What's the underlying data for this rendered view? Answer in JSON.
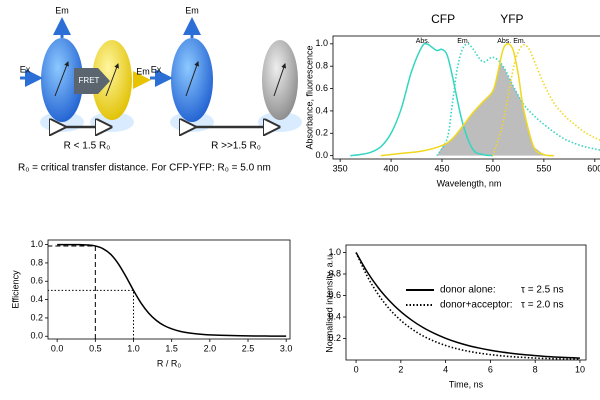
{
  "diagram": {
    "labels": {
      "em_left": "Em",
      "ex_left": "Ex",
      "fret": "FRET",
      "em_acceptor": "Em",
      "em_right": "Em",
      "ex_right": "Ex",
      "near": "R < 1.5 R₀",
      "far": "R >>1.5 R₀",
      "caption": "R₀ = critical transfer distance. For CFP-YFP: R₀ = 5.0 nm"
    }
  },
  "chart_data": [
    {
      "type": "line",
      "y_label": "Absorbance, fluorescence",
      "x_label": "Wavelength, nm",
      "xlim": [
        343,
        610
      ],
      "ylim": [
        -0.03,
        1.07
      ],
      "xticks": [
        350,
        400,
        450,
        500,
        550,
        600
      ],
      "yticks": [
        {
          "value": 0,
          "label": "0.0"
        },
        0.2,
        0.4,
        0.6,
        0.8,
        {
          "value": 1,
          "label": "1.0"
        }
      ],
      "overlap_fill": "#bdbdbd",
      "series": [
        {
          "group": "CFP",
          "name": "Abs.",
          "color": "#33d6c0",
          "style": "solid",
          "x": [
            360,
            370,
            380,
            390,
            400,
            410,
            420,
            430,
            435,
            440,
            445,
            450,
            455,
            460,
            470,
            480,
            490,
            500
          ],
          "values": [
            0.0,
            0.01,
            0.03,
            0.08,
            0.2,
            0.42,
            0.75,
            0.97,
            1.0,
            0.97,
            0.94,
            0.95,
            0.9,
            0.72,
            0.3,
            0.06,
            0.01,
            0.0
          ]
        },
        {
          "group": "CFP",
          "name": "Em.",
          "color": "#33d6c0",
          "style": "dotted",
          "shade": true,
          "x": [
            445,
            455,
            460,
            465,
            470,
            475,
            480,
            490,
            500,
            510,
            520,
            530,
            540,
            550,
            560,
            570,
            580,
            590,
            600,
            610
          ],
          "values": [
            0.0,
            0.15,
            0.45,
            0.78,
            0.95,
            1.0,
            0.96,
            0.84,
            0.88,
            0.8,
            0.62,
            0.46,
            0.36,
            0.28,
            0.21,
            0.15,
            0.11,
            0.08,
            0.06,
            0.04
          ]
        },
        {
          "group": "YFP",
          "name": "Abs.",
          "color": "#f0d81e",
          "style": "solid",
          "shade": true,
          "x": [
            390,
            410,
            430,
            450,
            460,
            470,
            480,
            490,
            500,
            505,
            510,
            515,
            520,
            525,
            530,
            540,
            550,
            560
          ],
          "values": [
            0.0,
            0.02,
            0.04,
            0.09,
            0.15,
            0.26,
            0.38,
            0.48,
            0.58,
            0.75,
            0.95,
            1.0,
            0.94,
            0.72,
            0.42,
            0.08,
            0.01,
            0.0
          ]
        },
        {
          "group": "YFP",
          "name": "Em.",
          "color": "#f0d81e",
          "style": "dotted",
          "x": [
            500,
            510,
            520,
            525,
            530,
            535,
            540,
            550,
            560,
            570,
            580,
            590,
            600,
            610
          ],
          "values": [
            0.0,
            0.3,
            0.78,
            0.93,
            0.99,
            0.96,
            0.86,
            0.64,
            0.47,
            0.36,
            0.28,
            0.21,
            0.16,
            0.12
          ]
        }
      ]
    },
    {
      "type": "line",
      "y_label": "Efficiency",
      "x_label": "R / R₀",
      "xlim": [
        -0.12,
        3.05
      ],
      "ylim": [
        -0.03,
        1.05
      ],
      "xticks": [
        {
          "value": 0,
          "label": "0.0"
        },
        0.5,
        {
          "value": 1,
          "label": "1.0"
        },
        1.5,
        {
          "value": 2,
          "label": "2.0"
        },
        2.5,
        {
          "value": 3,
          "label": "3.0"
        }
      ],
      "yticks": [
        {
          "value": 0,
          "label": "0.0"
        },
        0.2,
        0.4,
        0.6,
        0.8,
        {
          "value": 1,
          "label": "1.0"
        }
      ],
      "x": [
        0,
        0.1,
        0.2,
        0.3,
        0.4,
        0.5,
        0.6,
        0.7,
        0.8,
        0.9,
        1.0,
        1.1,
        1.2,
        1.3,
        1.4,
        1.5,
        1.6,
        1.7,
        1.8,
        1.9,
        2.0,
        2.2,
        2.4,
        2.6,
        2.8,
        3.0
      ],
      "series": [
        {
          "color": "#000000",
          "style": "solid",
          "values": [
            1.0,
            1.0,
            1.0,
            0.999,
            0.996,
            0.985,
            0.955,
            0.895,
            0.792,
            0.653,
            0.5,
            0.361,
            0.251,
            0.172,
            0.117,
            0.081,
            0.056,
            0.04,
            0.029,
            0.021,
            0.015,
            0.009,
            0.005,
            0.003,
            0.002,
            0.001
          ]
        }
      ],
      "guides": [
        {
          "x": 0.5,
          "y": 0.985,
          "style": "dashed"
        },
        {
          "x": 1.0,
          "y": 0.5,
          "style": "dotted"
        }
      ]
    },
    {
      "type": "line",
      "y_label": "Normalised intensity, a.u.",
      "x_label": "Time, ns",
      "xlim": [
        -0.45,
        10.27
      ],
      "ylim": [
        0,
        1.07
      ],
      "xticks": [
        0,
        2,
        4,
        6,
        8,
        10
      ],
      "yticks": [
        0.2,
        0.4,
        0.6,
        0.8,
        {
          "value": 1,
          "label": "1.0"
        }
      ],
      "legend": "upper right",
      "x": [
        0,
        0.5,
        1,
        1.5,
        2,
        2.5,
        3,
        3.5,
        4,
        4.5,
        5,
        5.5,
        6,
        6.5,
        7,
        7.5,
        8,
        8.5,
        9,
        9.5,
        10
      ],
      "series": [
        {
          "name": "donor alone:",
          "label": "τ = 2.5 ns",
          "color": "#000000",
          "style": "solid",
          "values": [
            1.0,
            0.819,
            0.67,
            0.549,
            0.449,
            0.368,
            0.301,
            0.247,
            0.202,
            0.165,
            0.135,
            0.111,
            0.091,
            0.074,
            0.061,
            0.05,
            0.041,
            0.033,
            0.027,
            0.022,
            0.018
          ]
        },
        {
          "name": "donor+acceptor:",
          "label": "τ = 2.0 ns",
          "color": "#000000",
          "style": "dotted",
          "values": [
            1.0,
            0.779,
            0.607,
            0.472,
            0.368,
            0.287,
            0.223,
            0.174,
            0.135,
            0.105,
            0.082,
            0.064,
            0.05,
            0.039,
            0.03,
            0.024,
            0.018,
            0.014,
            0.011,
            0.009,
            0.007
          ]
        }
      ]
    }
  ]
}
